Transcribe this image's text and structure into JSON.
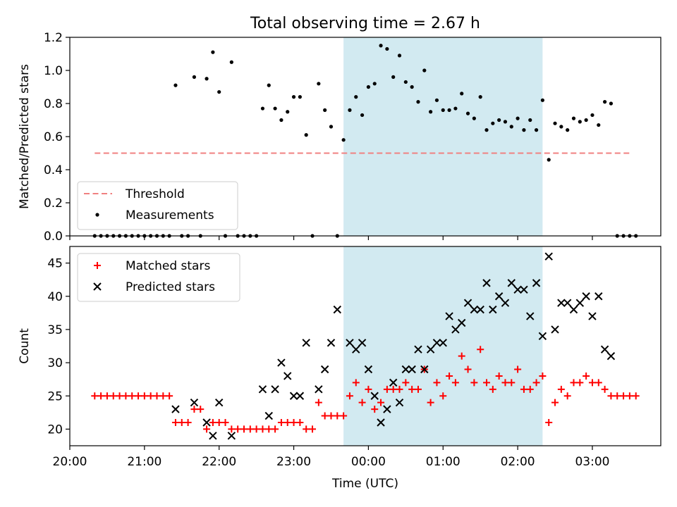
{
  "title": "Total observing time = 2.67 h",
  "chart_data": [
    {
      "type": "scatter",
      "ylabel": "Matched/Predicted stars",
      "xlabel": "",
      "xlim": [
        "20:00",
        "03:55"
      ],
      "ylim": [
        0,
        1.2
      ],
      "yticks": [
        "0.0",
        "0.2",
        "0.4",
        "0.6",
        "0.8",
        "1.0",
        "1.2"
      ],
      "legend": {
        "placement": "lower-left",
        "entries": [
          "Threshold",
          "Measurements"
        ]
      },
      "shaded_region": {
        "start": "23:40",
        "end": "02:20",
        "color": "#add8e6"
      },
      "threshold": {
        "name": "Threshold",
        "value": 0.5,
        "x_start": "20:20",
        "x_end": "03:30",
        "color": "#f08080"
      },
      "series": [
        {
          "name": "Measurements",
          "color": "#000000",
          "points": [
            [
              "20:20",
              0
            ],
            [
              "20:25",
              0
            ],
            [
              "20:30",
              0
            ],
            [
              "20:35",
              0
            ],
            [
              "20:40",
              0
            ],
            [
              "20:45",
              0
            ],
            [
              "20:50",
              0
            ],
            [
              "20:55",
              0
            ],
            [
              "21:00",
              0
            ],
            [
              "21:05",
              0
            ],
            [
              "21:10",
              0
            ],
            [
              "21:15",
              0
            ],
            [
              "21:20",
              0
            ],
            [
              "21:25",
              0.91
            ],
            [
              "21:30",
              0
            ],
            [
              "21:35",
              0
            ],
            [
              "21:40",
              0.96
            ],
            [
              "21:45",
              0
            ],
            [
              "21:50",
              0.95
            ],
            [
              "21:55",
              1.11
            ],
            [
              "22:00",
              0.87
            ],
            [
              "22:05",
              0
            ],
            [
              "22:10",
              1.05
            ],
            [
              "22:15",
              0
            ],
            [
              "22:20",
              0
            ],
            [
              "22:25",
              0
            ],
            [
              "22:30",
              0
            ],
            [
              "22:35",
              0.77
            ],
            [
              "22:40",
              0.91
            ],
            [
              "22:45",
              0.77
            ],
            [
              "22:50",
              0.7
            ],
            [
              "22:55",
              0.75
            ],
            [
              "23:00",
              0.84
            ],
            [
              "23:05",
              0.84
            ],
            [
              "23:10",
              0.61
            ],
            [
              "23:15",
              0
            ],
            [
              "23:20",
              0.92
            ],
            [
              "23:25",
              0.76
            ],
            [
              "23:30",
              0.66
            ],
            [
              "23:35",
              0
            ],
            [
              "23:40",
              0.58
            ],
            [
              "23:45",
              0.76
            ],
            [
              "23:50",
              0.84
            ],
            [
              "23:55",
              0.73
            ],
            [
              "00:00",
              0.9
            ],
            [
              "00:05",
              0.92
            ],
            [
              "00:10",
              1.15
            ],
            [
              "00:15",
              1.13
            ],
            [
              "00:20",
              0.96
            ],
            [
              "00:25",
              1.09
            ],
            [
              "00:30",
              0.93
            ],
            [
              "00:35",
              0.9
            ],
            [
              "00:40",
              0.81
            ],
            [
              "00:45",
              1.0
            ],
            [
              "00:50",
              0.75
            ],
            [
              "00:55",
              0.82
            ],
            [
              "01:00",
              0.76
            ],
            [
              "01:05",
              0.76
            ],
            [
              "01:10",
              0.77
            ],
            [
              "01:15",
              0.86
            ],
            [
              "01:20",
              0.74
            ],
            [
              "01:25",
              0.71
            ],
            [
              "01:30",
              0.84
            ],
            [
              "01:35",
              0.64
            ],
            [
              "01:40",
              0.68
            ],
            [
              "01:45",
              0.7
            ],
            [
              "01:50",
              0.69
            ],
            [
              "01:55",
              0.66
            ],
            [
              "02:00",
              0.71
            ],
            [
              "02:05",
              0.64
            ],
            [
              "02:10",
              0.7
            ],
            [
              "02:15",
              0.64
            ],
            [
              "02:20",
              0.82
            ],
            [
              "02:25",
              0.46
            ],
            [
              "02:30",
              0.68
            ],
            [
              "02:35",
              0.66
            ],
            [
              "02:40",
              0.64
            ],
            [
              "02:45",
              0.71
            ],
            [
              "02:50",
              0.69
            ],
            [
              "02:55",
              0.7
            ],
            [
              "03:00",
              0.73
            ],
            [
              "03:05",
              0.67
            ],
            [
              "03:10",
              0.81
            ],
            [
              "03:15",
              0.8
            ],
            [
              "03:20",
              0
            ],
            [
              "03:25",
              0
            ],
            [
              "03:30",
              0
            ],
            [
              "03:35",
              0
            ]
          ]
        }
      ]
    },
    {
      "type": "scatter",
      "ylabel": "Count",
      "xlabel": "Time (UTC)",
      "xlim": [
        "20:00",
        "03:55"
      ],
      "ylim": [
        17.5,
        47.5
      ],
      "xticks": [
        "20:00",
        "21:00",
        "22:00",
        "23:00",
        "00:00",
        "01:00",
        "02:00",
        "03:00"
      ],
      "yticks": [
        "20",
        "25",
        "30",
        "35",
        "40",
        "45"
      ],
      "legend": {
        "placement": "upper-left",
        "entries": [
          "Matched stars",
          "Predicted stars"
        ]
      },
      "shaded_region": {
        "start": "23:40",
        "end": "02:20",
        "color": "#add8e6"
      },
      "series": [
        {
          "name": "Matched stars",
          "marker": "+",
          "color": "#ff0000",
          "points": [
            [
              "20:20",
              25
            ],
            [
              "20:25",
              25
            ],
            [
              "20:30",
              25
            ],
            [
              "20:35",
              25
            ],
            [
              "20:40",
              25
            ],
            [
              "20:45",
              25
            ],
            [
              "20:50",
              25
            ],
            [
              "20:55",
              25
            ],
            [
              "21:00",
              25
            ],
            [
              "21:05",
              25
            ],
            [
              "21:10",
              25
            ],
            [
              "21:15",
              25
            ],
            [
              "21:20",
              25
            ],
            [
              "21:25",
              21
            ],
            [
              "21:30",
              21
            ],
            [
              "21:35",
              21
            ],
            [
              "21:40",
              23
            ],
            [
              "21:45",
              23
            ],
            [
              "21:50",
              20
            ],
            [
              "21:55",
              21
            ],
            [
              "22:00",
              21
            ],
            [
              "22:05",
              21
            ],
            [
              "22:10",
              20
            ],
            [
              "22:15",
              20
            ],
            [
              "22:20",
              20
            ],
            [
              "22:25",
              20
            ],
            [
              "22:30",
              20
            ],
            [
              "22:35",
              20
            ],
            [
              "22:40",
              20
            ],
            [
              "22:45",
              20
            ],
            [
              "22:50",
              21
            ],
            [
              "22:55",
              21
            ],
            [
              "23:00",
              21
            ],
            [
              "23:05",
              21
            ],
            [
              "23:10",
              20
            ],
            [
              "23:15",
              20
            ],
            [
              "23:20",
              24
            ],
            [
              "23:25",
              22
            ],
            [
              "23:30",
              22
            ],
            [
              "23:35",
              22
            ],
            [
              "23:40",
              22
            ],
            [
              "23:45",
              25
            ],
            [
              "23:50",
              27
            ],
            [
              "23:55",
              24
            ],
            [
              "00:00",
              26
            ],
            [
              "00:05",
              23
            ],
            [
              "00:10",
              24
            ],
            [
              "00:15",
              26
            ],
            [
              "00:20",
              26
            ],
            [
              "00:25",
              26
            ],
            [
              "00:30",
              27
            ],
            [
              "00:35",
              26
            ],
            [
              "00:40",
              26
            ],
            [
              "00:45",
              29
            ],
            [
              "00:50",
              24
            ],
            [
              "00:55",
              27
            ],
            [
              "01:00",
              25
            ],
            [
              "01:05",
              28
            ],
            [
              "01:10",
              27
            ],
            [
              "01:15",
              31
            ],
            [
              "01:20",
              29
            ],
            [
              "01:25",
              27
            ],
            [
              "01:30",
              32
            ],
            [
              "01:35",
              27
            ],
            [
              "01:40",
              26
            ],
            [
              "01:45",
              28
            ],
            [
              "01:50",
              27
            ],
            [
              "01:55",
              27
            ],
            [
              "02:00",
              29
            ],
            [
              "02:05",
              26
            ],
            [
              "02:10",
              26
            ],
            [
              "02:15",
              27
            ],
            [
              "02:20",
              28
            ],
            [
              "02:25",
              21
            ],
            [
              "02:30",
              24
            ],
            [
              "02:35",
              26
            ],
            [
              "02:40",
              25
            ],
            [
              "02:45",
              27
            ],
            [
              "02:50",
              27
            ],
            [
              "02:55",
              28
            ],
            [
              "03:00",
              27
            ],
            [
              "03:05",
              27
            ],
            [
              "03:10",
              26
            ],
            [
              "03:15",
              25
            ],
            [
              "03:20",
              25
            ],
            [
              "03:25",
              25
            ],
            [
              "03:30",
              25
            ],
            [
              "03:35",
              25
            ]
          ]
        },
        {
          "name": "Predicted stars",
          "marker": "x",
          "color": "#000000",
          "points": [
            [
              "21:25",
              23
            ],
            [
              "21:40",
              24
            ],
            [
              "21:50",
              21
            ],
            [
              "21:55",
              19
            ],
            [
              "22:00",
              24
            ],
            [
              "22:10",
              19
            ],
            [
              "22:35",
              26
            ],
            [
              "22:40",
              22
            ],
            [
              "22:45",
              26
            ],
            [
              "22:50",
              30
            ],
            [
              "22:55",
              28
            ],
            [
              "23:00",
              25
            ],
            [
              "23:05",
              25
            ],
            [
              "23:10",
              33
            ],
            [
              "23:20",
              26
            ],
            [
              "23:25",
              29
            ],
            [
              "23:30",
              33
            ],
            [
              "23:35",
              38
            ],
            [
              "23:45",
              33
            ],
            [
              "23:50",
              32
            ],
            [
              "23:55",
              33
            ],
            [
              "00:00",
              29
            ],
            [
              "00:05",
              25
            ],
            [
              "00:10",
              21
            ],
            [
              "00:15",
              23
            ],
            [
              "00:20",
              27
            ],
            [
              "00:25",
              24
            ],
            [
              "00:30",
              29
            ],
            [
              "00:35",
              29
            ],
            [
              "00:40",
              32
            ],
            [
              "00:45",
              29
            ],
            [
              "00:50",
              32
            ],
            [
              "00:55",
              33
            ],
            [
              "01:00",
              33
            ],
            [
              "01:05",
              37
            ],
            [
              "01:10",
              35
            ],
            [
              "01:15",
              36
            ],
            [
              "01:20",
              39
            ],
            [
              "01:25",
              38
            ],
            [
              "01:30",
              38
            ],
            [
              "01:35",
              42
            ],
            [
              "01:40",
              38
            ],
            [
              "01:45",
              40
            ],
            [
              "01:50",
              39
            ],
            [
              "01:55",
              42
            ],
            [
              "02:00",
              41
            ],
            [
              "02:05",
              41
            ],
            [
              "02:10",
              37
            ],
            [
              "02:15",
              42
            ],
            [
              "02:20",
              34
            ],
            [
              "02:25",
              46
            ],
            [
              "02:30",
              35
            ],
            [
              "02:35",
              39
            ],
            [
              "02:40",
              39
            ],
            [
              "02:45",
              38
            ],
            [
              "02:50",
              39
            ],
            [
              "02:55",
              40
            ],
            [
              "03:00",
              37
            ],
            [
              "03:05",
              40
            ],
            [
              "03:10",
              32
            ],
            [
              "03:15",
              31
            ]
          ]
        }
      ]
    }
  ]
}
